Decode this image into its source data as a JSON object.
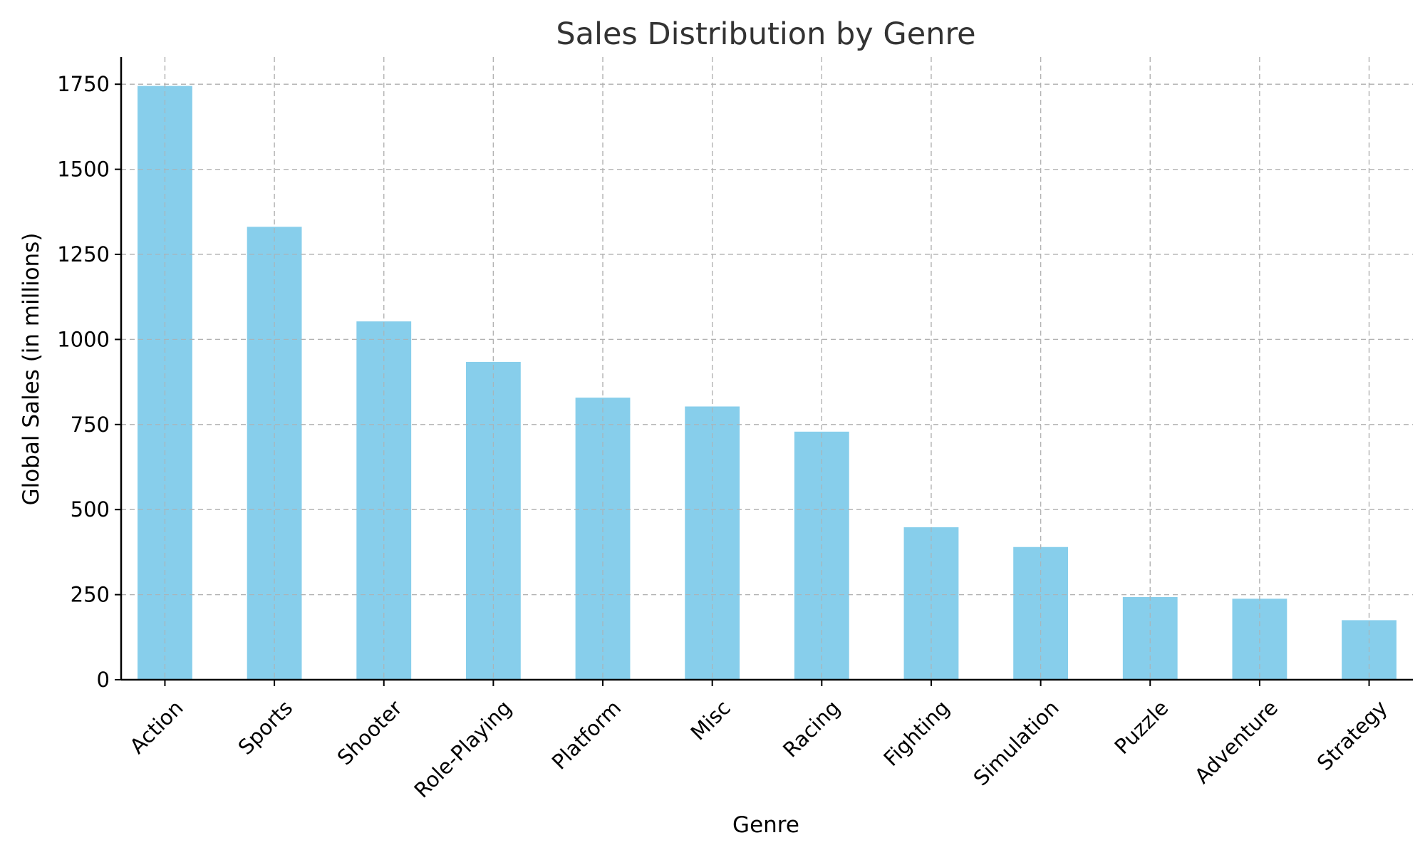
{
  "chart_data": {
    "type": "bar",
    "title": "Sales Distribution by Genre",
    "xlabel": "Genre",
    "ylabel": "Global Sales (in millions)",
    "categories": [
      "Action",
      "Sports",
      "Shooter",
      "Role-Playing",
      "Platform",
      "Misc",
      "Racing",
      "Fighting",
      "Simulation",
      "Puzzle",
      "Adventure",
      "Strategy"
    ],
    "values": [
      1745,
      1331,
      1053,
      934,
      829,
      803,
      729,
      448,
      390,
      243,
      238,
      175
    ],
    "ylim": [
      0,
      1830
    ],
    "yticks": [
      0,
      250,
      500,
      750,
      1000,
      1250,
      1500,
      1750
    ],
    "grid": true,
    "bar_color": "#87CEEB",
    "legend": "none"
  }
}
